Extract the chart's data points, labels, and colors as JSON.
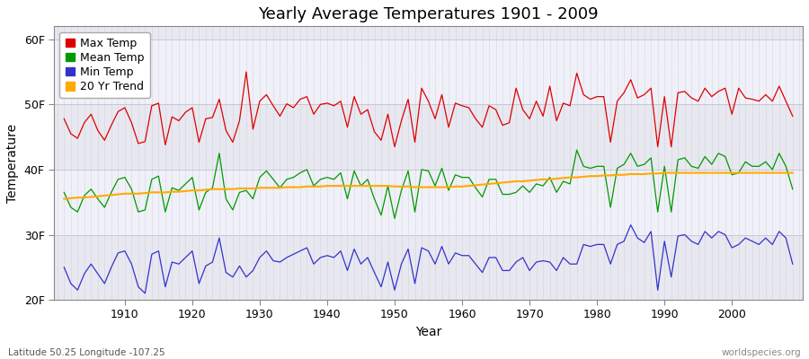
{
  "title": "Yearly Average Temperatures 1901 - 2009",
  "xlabel": "Year",
  "ylabel": "Temperature",
  "start_year": 1901,
  "end_year": 2009,
  "ylim": [
    20,
    62
  ],
  "yticks": [
    20,
    30,
    40,
    50,
    60
  ],
  "ytick_labels": [
    "20F",
    "30F",
    "40F",
    "50F",
    "60F"
  ],
  "xticks": [
    1910,
    1920,
    1930,
    1940,
    1950,
    1960,
    1970,
    1980,
    1990,
    2000
  ],
  "colors": {
    "max_temp": "#dd0000",
    "mean_temp": "#009900",
    "min_temp": "#3333cc",
    "trend": "#ffaa00",
    "fig_bg": "#ffffff",
    "plot_bg": "#e8e8f0",
    "band_light": "#f0f0f8",
    "grid": "#bbbbcc"
  },
  "legend_labels": [
    "Max Temp",
    "Mean Temp",
    "Min Temp",
    "20 Yr Trend"
  ],
  "footnote_left": "Latitude 50.25 Longitude -107.25",
  "footnote_right": "worldspecies.org",
  "max_temp": [
    47.8,
    45.5,
    44.8,
    47.2,
    48.5,
    46.0,
    44.5,
    46.8,
    48.9,
    49.5,
    47.2,
    44.0,
    44.3,
    49.8,
    50.2,
    43.8,
    48.1,
    47.5,
    48.8,
    49.5,
    44.2,
    47.8,
    48.0,
    50.8,
    46.0,
    44.2,
    47.5,
    55.0,
    46.2,
    50.5,
    51.5,
    49.8,
    48.2,
    50.1,
    49.5,
    50.8,
    51.2,
    48.5,
    50.0,
    50.2,
    49.8,
    50.5,
    46.5,
    51.2,
    48.5,
    49.2,
    45.8,
    44.5,
    48.5,
    43.5,
    47.5,
    50.8,
    44.2,
    52.5,
    50.5,
    47.8,
    51.5,
    46.5,
    50.2,
    49.8,
    49.5,
    47.8,
    46.5,
    49.8,
    49.2,
    46.8,
    47.2,
    52.5,
    49.2,
    47.8,
    50.5,
    48.2,
    52.8,
    47.5,
    50.2,
    49.8,
    54.8,
    51.5,
    50.8,
    51.2,
    51.2,
    44.2,
    50.5,
    51.8,
    53.8,
    51.0,
    51.5,
    52.5,
    43.5,
    51.2,
    43.5,
    51.8,
    52.0,
    51.0,
    50.5,
    52.5,
    51.2,
    52.0,
    52.5,
    48.5,
    52.5,
    51.0,
    50.8,
    50.5,
    51.5,
    50.5,
    52.8,
    50.5,
    48.2
  ],
  "mean_temp": [
    36.5,
    34.2,
    33.5,
    36.0,
    37.0,
    35.5,
    34.2,
    36.5,
    38.5,
    38.8,
    37.0,
    33.5,
    33.8,
    38.5,
    39.0,
    33.5,
    37.2,
    36.8,
    37.8,
    38.8,
    33.8,
    36.5,
    37.2,
    42.5,
    35.5,
    33.8,
    36.5,
    36.8,
    35.5,
    38.8,
    39.8,
    38.5,
    37.2,
    38.5,
    38.8,
    39.5,
    40.0,
    37.5,
    38.5,
    38.8,
    38.5,
    39.5,
    35.5,
    39.8,
    37.5,
    38.5,
    35.5,
    33.0,
    37.5,
    32.5,
    36.8,
    39.8,
    33.5,
    40.0,
    39.8,
    37.5,
    40.2,
    36.8,
    39.2,
    38.8,
    38.8,
    37.2,
    35.8,
    38.5,
    38.5,
    36.2,
    36.2,
    36.5,
    37.5,
    36.5,
    37.8,
    37.5,
    38.8,
    36.5,
    38.2,
    37.8,
    43.0,
    40.5,
    40.2,
    40.5,
    40.5,
    34.2,
    40.2,
    40.8,
    42.5,
    40.5,
    40.8,
    41.8,
    33.5,
    40.5,
    33.5,
    41.5,
    41.8,
    40.5,
    40.2,
    42.0,
    40.8,
    42.5,
    42.0,
    39.2,
    39.5,
    41.2,
    40.5,
    40.5,
    41.2,
    40.0,
    42.5,
    40.5,
    37.0
  ],
  "min_temp": [
    25.0,
    22.5,
    21.5,
    24.0,
    25.5,
    24.0,
    22.5,
    25.0,
    27.2,
    27.5,
    25.5,
    22.0,
    21.0,
    27.0,
    27.5,
    22.0,
    25.8,
    25.5,
    26.5,
    27.5,
    22.5,
    25.2,
    25.8,
    29.5,
    24.2,
    23.5,
    25.2,
    23.5,
    24.5,
    26.5,
    27.5,
    26.0,
    25.8,
    26.5,
    27.0,
    27.5,
    28.0,
    25.5,
    26.5,
    26.8,
    26.5,
    27.5,
    24.5,
    27.8,
    25.5,
    26.5,
    24.2,
    22.0,
    25.8,
    21.5,
    25.5,
    27.8,
    22.5,
    28.0,
    27.5,
    25.5,
    28.2,
    25.5,
    27.2,
    26.8,
    26.8,
    25.5,
    24.2,
    26.5,
    26.5,
    24.5,
    24.5,
    25.8,
    26.5,
    24.5,
    25.8,
    26.0,
    25.8,
    24.5,
    26.5,
    25.5,
    25.5,
    28.5,
    28.2,
    28.5,
    28.5,
    25.5,
    28.5,
    29.0,
    31.5,
    29.5,
    28.8,
    30.5,
    21.5,
    29.0,
    23.5,
    29.8,
    30.0,
    29.0,
    28.5,
    30.5,
    29.5,
    30.5,
    30.0,
    28.0,
    28.5,
    29.5,
    29.0,
    28.5,
    29.5,
    28.5,
    30.5,
    29.5,
    25.5
  ],
  "trend": [
    35.5,
    35.6,
    35.7,
    35.7,
    35.8,
    35.9,
    36.0,
    36.1,
    36.2,
    36.3,
    36.3,
    36.3,
    36.4,
    36.5,
    36.5,
    36.5,
    36.6,
    36.6,
    36.7,
    36.8,
    36.8,
    36.9,
    37.0,
    37.0,
    37.0,
    37.0,
    37.1,
    37.1,
    37.1,
    37.2,
    37.2,
    37.2,
    37.2,
    37.3,
    37.3,
    37.3,
    37.4,
    37.4,
    37.4,
    37.5,
    37.5,
    37.5,
    37.5,
    37.5,
    37.5,
    37.5,
    37.5,
    37.5,
    37.5,
    37.4,
    37.4,
    37.4,
    37.3,
    37.3,
    37.3,
    37.3,
    37.3,
    37.3,
    37.4,
    37.4,
    37.5,
    37.6,
    37.7,
    37.8,
    37.9,
    38.0,
    38.1,
    38.2,
    38.2,
    38.3,
    38.4,
    38.5,
    38.5,
    38.6,
    38.7,
    38.8,
    38.8,
    38.9,
    39.0,
    39.0,
    39.1,
    39.1,
    39.2,
    39.2,
    39.3,
    39.3,
    39.3,
    39.4,
    39.4,
    39.5,
    39.5,
    39.5,
    39.5,
    39.5,
    39.5,
    39.5,
    39.5,
    39.5,
    39.5,
    39.5,
    39.5,
    39.5,
    39.5,
    39.5,
    39.5,
    39.5,
    39.5,
    39.5,
    39.5
  ]
}
